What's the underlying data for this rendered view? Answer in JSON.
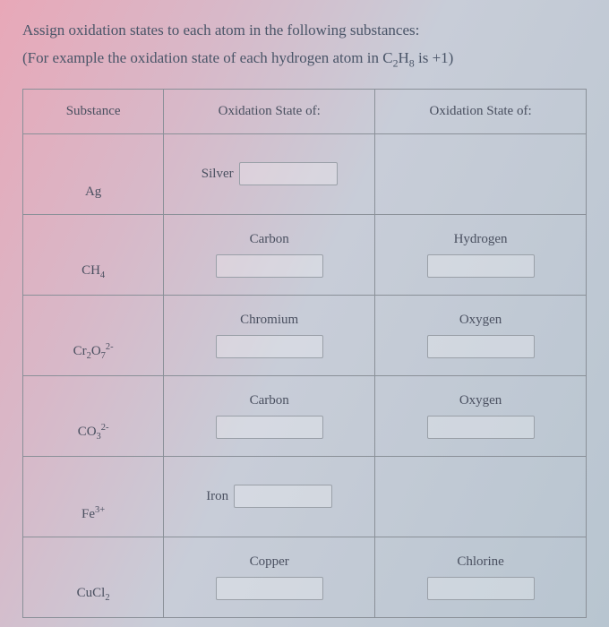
{
  "instructions": {
    "line1": "Assign oxidation states to each atom in the following substances:",
    "line2_prefix": "(For example the oxidation state of each hydrogen atom in C",
    "line2_sub1": "2",
    "line2_mid": "H",
    "line2_sub2": "8",
    "line2_suffix": " is +1)"
  },
  "headers": {
    "substance": "Substance",
    "oxidation1": "Oxidation State of:",
    "oxidation2": "Oxidation State of:"
  },
  "rows": [
    {
      "substance_html": "Ag",
      "col1_label": "Silver",
      "col1_inline": true,
      "col2_label": ""
    },
    {
      "substance_html": "CH<sub>4</sub>",
      "col1_label": "Carbon",
      "col1_inline": false,
      "col2_label": "Hydrogen"
    },
    {
      "substance_html": "Cr<sub>2</sub>O<sub>7</sub><sup>2-</sup>",
      "col1_label": "Chromium",
      "col1_inline": false,
      "col2_label": "Oxygen"
    },
    {
      "substance_html": "CO<sub>3</sub><sup>2-</sup>",
      "col1_label": "Carbon",
      "col1_inline": false,
      "col2_label": "Oxygen"
    },
    {
      "substance_html": "Fe<sup>3+</sup>",
      "col1_label": "Iron",
      "col1_inline": true,
      "col2_label": ""
    },
    {
      "substance_html": "CuCl<sub>2</sub>",
      "col1_label": "Copper",
      "col1_inline": false,
      "col2_label": "Chlorine"
    }
  ],
  "colors": {
    "border": "#8a9098",
    "text": "#4a5060",
    "input_border": "#9aa0a8"
  }
}
